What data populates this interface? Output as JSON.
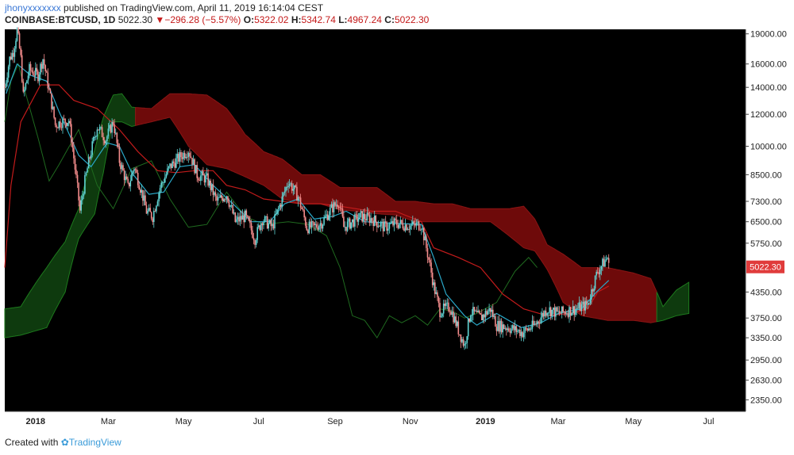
{
  "header": {
    "user": "jhonyxxxxxxx",
    "published_text": "published on TradingView.com, April 11, 2019 16:14:04 CEST",
    "symbol": "COINBASE:BTCUSD, 1D",
    "last": "5022.30",
    "change": "−296.28 (−5.57%)",
    "o_label": "O:",
    "o_value": "5322.02",
    "h_label": "H:",
    "h_value": "5342.74",
    "l_label": "L:",
    "l_value": "4967.24",
    "c_label": "C:",
    "c_value": "5022.30"
  },
  "footer": {
    "created_with": "Created with",
    "brand": "TradingView"
  },
  "chart_data": {
    "type": "candlestick",
    "title": "",
    "xlabel": "",
    "ylabel": "",
    "y_scale": "log",
    "ylim": [
      2200,
      19500
    ],
    "xlim": [
      "2017-12-07",
      "2019-07-31"
    ],
    "y_ticks": [
      "19000.00",
      "16000.00",
      "14000.00",
      "12000.00",
      "10000.00",
      "8500.00",
      "7300.00",
      "6500.00",
      "5750.00",
      "4350.00",
      "3750.00",
      "3350.00",
      "2950.00",
      "2630.00",
      "2350.00"
    ],
    "x_ticks": [
      {
        "label": "2018",
        "date": "2018-01-01"
      },
      {
        "label": "Mar",
        "date": "2018-03-01"
      },
      {
        "label": "May",
        "date": "2018-05-01"
      },
      {
        "label": "Jul",
        "date": "2018-07-01"
      },
      {
        "label": "Sep",
        "date": "2018-09-01"
      },
      {
        "label": "Nov",
        "date": "2018-11-01"
      },
      {
        "label": "2019",
        "date": "2019-01-01"
      },
      {
        "label": "Mar",
        "date": "2019-03-01"
      },
      {
        "label": "May",
        "date": "2019-05-01"
      },
      {
        "label": "Jul",
        "date": "2019-07-01"
      }
    ],
    "last_price_label": "5022.30",
    "last_price": 5022.3,
    "grid": false,
    "colors": {
      "background": "#000000",
      "up_candle": "#5fd3d3",
      "down_candle": "#f28b8b",
      "tenkan": "#2aa8c8",
      "kijun": "#c21b1b",
      "chikou": "#1f6a1f",
      "kumo_bull": "#0e3a0e",
      "kumo_bear": "#6e0a0a",
      "price_tag": "#e03b3b"
    },
    "price_path": [
      [
        "2017-12-07",
        14000
      ],
      [
        "2017-12-11",
        16500
      ],
      [
        "2017-12-14",
        17200
      ],
      [
        "2017-12-17",
        19400
      ],
      [
        "2017-12-20",
        16500
      ],
      [
        "2017-12-22",
        13300
      ],
      [
        "2017-12-27",
        15500
      ],
      [
        "2018-01-03",
        15000
      ],
      [
        "2018-01-07",
        16500
      ],
      [
        "2018-01-12",
        13700
      ],
      [
        "2018-01-17",
        11300
      ],
      [
        "2018-01-22",
        11500
      ],
      [
        "2018-01-28",
        11600
      ],
      [
        "2018-02-02",
        8800
      ],
      [
        "2018-02-06",
        6900
      ],
      [
        "2018-02-10",
        8200
      ],
      [
        "2018-02-20",
        11200
      ],
      [
        "2018-02-27",
        10400
      ],
      [
        "2018-03-05",
        11500
      ],
      [
        "2018-03-10",
        9200
      ],
      [
        "2018-03-17",
        7900
      ],
      [
        "2018-03-22",
        8900
      ],
      [
        "2018-04-01",
        6900
      ],
      [
        "2018-04-06",
        6700
      ],
      [
        "2018-04-12",
        7900
      ],
      [
        "2018-04-20",
        8900
      ],
      [
        "2018-04-28",
        9400
      ],
      [
        "2018-05-05",
        9800
      ],
      [
        "2018-05-12",
        8500
      ],
      [
        "2018-05-20",
        8300
      ],
      [
        "2018-05-28",
        7300
      ],
      [
        "2018-06-05",
        7600
      ],
      [
        "2018-06-12",
        6500
      ],
      [
        "2018-06-20",
        6700
      ],
      [
        "2018-06-28",
        5900
      ],
      [
        "2018-07-04",
        6600
      ],
      [
        "2018-07-12",
        6300
      ],
      [
        "2018-07-20",
        7400
      ],
      [
        "2018-07-25",
        8200
      ],
      [
        "2018-08-02",
        7500
      ],
      [
        "2018-08-09",
        6300
      ],
      [
        "2018-08-15",
        6300
      ],
      [
        "2018-08-22",
        6500
      ],
      [
        "2018-08-29",
        7000
      ],
      [
        "2018-09-04",
        7300
      ],
      [
        "2018-09-08",
        6300
      ],
      [
        "2018-09-15",
        6500
      ],
      [
        "2018-09-22",
        6700
      ],
      [
        "2018-10-01",
        6600
      ],
      [
        "2018-10-11",
        6300
      ],
      [
        "2018-10-20",
        6450
      ],
      [
        "2018-11-01",
        6350
      ],
      [
        "2018-11-10",
        6400
      ],
      [
        "2018-11-14",
        5600
      ],
      [
        "2018-11-20",
        4500
      ],
      [
        "2018-11-25",
        3900
      ],
      [
        "2018-12-03",
        4000
      ],
      [
        "2018-12-10",
        3500
      ],
      [
        "2018-12-15",
        3200
      ],
      [
        "2018-12-20",
        3900
      ],
      [
        "2018-12-28",
        3750
      ],
      [
        "2019-01-05",
        3950
      ],
      [
        "2019-01-10",
        3600
      ],
      [
        "2019-01-20",
        3550
      ],
      [
        "2019-01-31",
        3450
      ],
      [
        "2019-02-10",
        3600
      ],
      [
        "2019-02-20",
        3950
      ],
      [
        "2019-03-01",
        3850
      ],
      [
        "2019-03-15",
        3950
      ],
      [
        "2019-03-25",
        4050
      ],
      [
        "2019-04-02",
        4900
      ],
      [
        "2019-04-10",
        5300
      ],
      [
        "2019-04-11",
        5022
      ]
    ],
    "tenkan_path": [
      [
        "2017-12-08",
        13500
      ],
      [
        "2017-12-17",
        16000
      ],
      [
        "2017-12-28",
        15000
      ],
      [
        "2018-01-10",
        14500
      ],
      [
        "2018-01-20",
        12200
      ],
      [
        "2018-02-05",
        9500
      ],
      [
        "2018-02-15",
        8900
      ],
      [
        "2018-02-28",
        10200
      ],
      [
        "2018-03-10",
        10000
      ],
      [
        "2018-03-20",
        8600
      ],
      [
        "2018-04-03",
        7600
      ],
      [
        "2018-04-15",
        7700
      ],
      [
        "2018-04-28",
        8900
      ],
      [
        "2018-05-10",
        9000
      ],
      [
        "2018-05-25",
        8000
      ],
      [
        "2018-06-10",
        7200
      ],
      [
        "2018-06-25",
        6500
      ],
      [
        "2018-07-10",
        6500
      ],
      [
        "2018-07-22",
        7200
      ],
      [
        "2018-08-02",
        7400
      ],
      [
        "2018-08-15",
        6600
      ],
      [
        "2018-08-30",
        6700
      ],
      [
        "2018-09-10",
        6900
      ],
      [
        "2018-09-25",
        6500
      ],
      [
        "2018-10-15",
        6450
      ],
      [
        "2018-11-10",
        6400
      ],
      [
        "2018-11-20",
        5300
      ],
      [
        "2018-11-30",
        4300
      ],
      [
        "2018-12-15",
        3800
      ],
      [
        "2018-12-25",
        3600
      ],
      [
        "2019-01-10",
        3850
      ],
      [
        "2019-01-30",
        3550
      ],
      [
        "2019-02-15",
        3650
      ],
      [
        "2019-03-01",
        3850
      ],
      [
        "2019-03-20",
        3950
      ],
      [
        "2019-04-01",
        4350
      ],
      [
        "2019-04-11",
        4650
      ]
    ],
    "kijun_path": [
      [
        "2017-12-07",
        5000
      ],
      [
        "2017-12-12",
        8000
      ],
      [
        "2017-12-20",
        11500
      ],
      [
        "2018-01-05",
        14200
      ],
      [
        "2018-01-20",
        14200
      ],
      [
        "2018-02-01",
        13000
      ],
      [
        "2018-02-20",
        12400
      ],
      [
        "2018-03-10",
        11000
      ],
      [
        "2018-03-25",
        9700
      ],
      [
        "2018-04-10",
        8700
      ],
      [
        "2018-04-25",
        8600
      ],
      [
        "2018-05-10",
        8700
      ],
      [
        "2018-05-25",
        8700
      ],
      [
        "2018-06-05",
        8000
      ],
      [
        "2018-06-20",
        7800
      ],
      [
        "2018-07-05",
        7400
      ],
      [
        "2018-07-20",
        7300
      ],
      [
        "2018-08-05",
        7200
      ],
      [
        "2018-08-20",
        7200
      ],
      [
        "2018-09-05",
        7100
      ],
      [
        "2018-10-01",
        6900
      ],
      [
        "2018-10-20",
        6900
      ],
      [
        "2018-11-10",
        6500
      ],
      [
        "2018-11-20",
        5600
      ],
      [
        "2018-12-10",
        5300
      ],
      [
        "2018-12-28",
        5000
      ],
      [
        "2019-01-15",
        4300
      ],
      [
        "2019-02-01",
        3950
      ],
      [
        "2019-02-20",
        3800
      ],
      [
        "2019-03-10",
        3850
      ],
      [
        "2019-03-25",
        3950
      ],
      [
        "2019-04-02",
        4350
      ],
      [
        "2019-04-11",
        4500
      ]
    ],
    "chikou_path": [
      [
        "2017-12-07",
        11500
      ],
      [
        "2017-12-12",
        14500
      ],
      [
        "2017-12-18",
        16000
      ],
      [
        "2017-12-24",
        13500
      ],
      [
        "2018-01-03",
        10500
      ],
      [
        "2018-01-12",
        8200
      ],
      [
        "2018-01-20",
        9000
      ],
      [
        "2018-02-05",
        11000
      ],
      [
        "2018-02-20",
        8000
      ],
      [
        "2018-03-05",
        7000
      ],
      [
        "2018-03-20",
        8800
      ],
      [
        "2018-04-05",
        9200
      ],
      [
        "2018-04-20",
        7400
      ],
      [
        "2018-05-05",
        6300
      ],
      [
        "2018-05-20",
        6400
      ],
      [
        "2018-06-05",
        7700
      ],
      [
        "2018-06-20",
        6700
      ],
      [
        "2018-07-05",
        6400
      ],
      [
        "2018-07-25",
        6500
      ],
      [
        "2018-08-10",
        6400
      ],
      [
        "2018-08-25",
        6000
      ],
      [
        "2018-09-05",
        5000
      ],
      [
        "2018-09-15",
        3800
      ],
      [
        "2018-09-25",
        3700
      ],
      [
        "2018-10-05",
        3350
      ],
      [
        "2018-10-15",
        3800
      ],
      [
        "2018-10-25",
        3650
      ],
      [
        "2018-11-05",
        3800
      ],
      [
        "2018-11-15",
        3600
      ],
      [
        "2018-11-25",
        3950
      ],
      [
        "2018-12-05",
        3900
      ],
      [
        "2018-12-15",
        3750
      ],
      [
        "2018-12-25",
        3850
      ],
      [
        "2019-01-10",
        4100
      ],
      [
        "2019-01-25",
        4900
      ],
      [
        "2019-02-05",
        5300
      ],
      [
        "2019-02-12",
        5000
      ]
    ],
    "kumo_top": [
      [
        "2017-12-07",
        3950
      ],
      [
        "2017-12-20",
        4000
      ],
      [
        "2018-01-10",
        5000
      ],
      [
        "2018-01-25",
        5800
      ],
      [
        "2018-02-05",
        7000
      ],
      [
        "2018-02-18",
        9800
      ],
      [
        "2018-02-25",
        11800
      ],
      [
        "2018-03-05",
        13400
      ],
      [
        "2018-03-12",
        13500
      ],
      [
        "2018-03-20",
        12500
      ],
      [
        "2018-04-05",
        12400
      ],
      [
        "2018-04-20",
        13500
      ],
      [
        "2018-05-05",
        13500
      ],
      [
        "2018-05-20",
        13400
      ],
      [
        "2018-06-05",
        12400
      ],
      [
        "2018-06-20",
        10700
      ],
      [
        "2018-07-05",
        9700
      ],
      [
        "2018-07-20",
        9300
      ],
      [
        "2018-08-05",
        8500
      ],
      [
        "2018-08-20",
        8500
      ],
      [
        "2018-09-05",
        7900
      ],
      [
        "2018-09-20",
        7900
      ],
      [
        "2018-10-05",
        7900
      ],
      [
        "2018-10-20",
        7300
      ],
      [
        "2018-11-05",
        7300
      ],
      [
        "2018-11-20",
        7200
      ],
      [
        "2018-12-05",
        7200
      ],
      [
        "2018-12-20",
        7000
      ],
      [
        "2019-01-05",
        7000
      ],
      [
        "2019-01-20",
        7000
      ],
      [
        "2019-02-01",
        7100
      ],
      [
        "2019-02-10",
        6600
      ],
      [
        "2019-02-20",
        5700
      ],
      [
        "2019-03-05",
        5400
      ],
      [
        "2019-03-20",
        5000
      ],
      [
        "2019-04-10",
        5000
      ],
      [
        "2019-05-01",
        4850
      ],
      [
        "2019-05-15",
        4700
      ],
      [
        "2019-05-25",
        4000
      ],
      [
        "2019-06-05",
        4400
      ],
      [
        "2019-06-15",
        4600
      ]
    ],
    "kumo_bottom": [
      [
        "2017-12-07",
        3350
      ],
      [
        "2017-12-20",
        3400
      ],
      [
        "2018-01-10",
        3550
      ],
      [
        "2018-01-25",
        4350
      ],
      [
        "2018-02-05",
        5900
      ],
      [
        "2018-02-18",
        6800
      ],
      [
        "2018-02-25",
        8600
      ],
      [
        "2018-03-05",
        11500
      ],
      [
        "2018-03-12",
        11500
      ],
      [
        "2018-03-20",
        11200
      ],
      [
        "2018-04-05",
        11500
      ],
      [
        "2018-04-20",
        11800
      ],
      [
        "2018-05-05",
        10000
      ],
      [
        "2018-05-20",
        9000
      ],
      [
        "2018-06-05",
        8800
      ],
      [
        "2018-06-20",
        8400
      ],
      [
        "2018-07-05",
        8000
      ],
      [
        "2018-07-20",
        7400
      ],
      [
        "2018-08-05",
        7200
      ],
      [
        "2018-08-20",
        7200
      ],
      [
        "2018-09-05",
        6950
      ],
      [
        "2018-09-20",
        6900
      ],
      [
        "2018-10-05",
        6800
      ],
      [
        "2018-10-20",
        6750
      ],
      [
        "2018-11-05",
        6500
      ],
      [
        "2018-11-20",
        6500
      ],
      [
        "2018-12-05",
        6500
      ],
      [
        "2018-12-20",
        6500
      ],
      [
        "2019-01-05",
        6500
      ],
      [
        "2019-01-20",
        6000
      ],
      [
        "2019-02-01",
        5600
      ],
      [
        "2019-02-10",
        5500
      ],
      [
        "2019-02-20",
        4950
      ],
      [
        "2019-03-05",
        4100
      ],
      [
        "2019-03-20",
        3800
      ],
      [
        "2019-04-10",
        3700
      ],
      [
        "2019-05-01",
        3700
      ],
      [
        "2019-05-15",
        3650
      ],
      [
        "2019-05-25",
        3700
      ],
      [
        "2019-06-05",
        3800
      ],
      [
        "2019-06-15",
        3850
      ]
    ]
  }
}
